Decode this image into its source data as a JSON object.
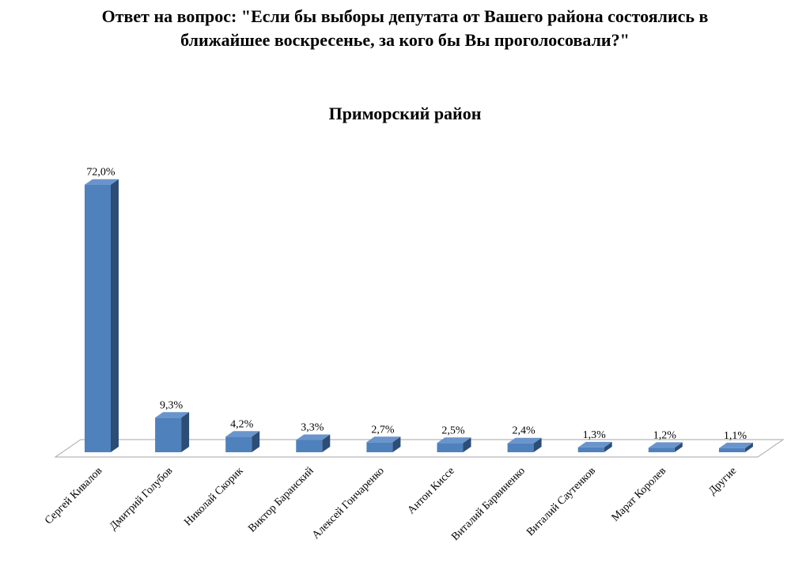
{
  "chart_data": {
    "type": "bar3d",
    "title": "Ответ на вопрос: \"Если бы выборы депутата от Вашего района состоялись в ближайшее воскресенье, за кого бы Вы проголосовали?\"",
    "subtitle": "Приморский район",
    "categories": [
      "Сергей Кивалов",
      "Дмитрий Голубов",
      "Николай Скорик",
      "Виктор Баранский",
      "Алексей Гончаренко",
      "Антон Киссе",
      "Виталий Барвиненко",
      "Виталий Саутенков",
      "Марат Королев",
      "Другие"
    ],
    "values": [
      72.0,
      9.3,
      4.2,
      3.3,
      2.7,
      2.5,
      2.4,
      1.3,
      1.2,
      1.1
    ],
    "value_labels": [
      "72,0%",
      "9,3%",
      "4,2%",
      "3,3%",
      "2,7%",
      "2,5%",
      "2,4%",
      "1,3%",
      "1,2%",
      "1,1%"
    ],
    "color": "#4f81bd"
  }
}
